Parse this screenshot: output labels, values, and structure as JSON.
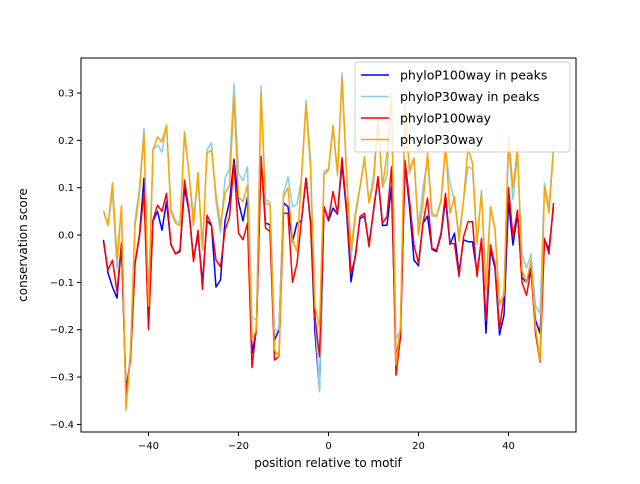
{
  "chart_data": {
    "type": "line",
    "title": "",
    "xlabel": "position relative to motif",
    "ylabel": "conservation score",
    "xlim": [
      -55,
      55
    ],
    "ylim": [
      -0.416,
      0.374
    ],
    "xticks": [
      -40,
      -20,
      0,
      20,
      40
    ],
    "xtick_labels": [
      "−40",
      "−20",
      "0",
      "20",
      "40"
    ],
    "yticks": [
      -0.4,
      -0.3,
      -0.2,
      -0.1,
      0.0,
      0.1,
      0.2,
      0.3
    ],
    "ytick_labels": [
      "−0.4",
      "−0.3",
      "−0.2",
      "−0.1",
      "0.0",
      "0.1",
      "0.2",
      "0.3"
    ],
    "grid": false,
    "legend_position": "top-right",
    "x": [
      -50,
      -49,
      -48,
      -47,
      -46,
      -45,
      -44,
      -43,
      -42,
      -41,
      -40,
      -39,
      -38,
      -37,
      -36,
      -35,
      -34,
      -33,
      -32,
      -31,
      -30,
      -29,
      -28,
      -27,
      -26,
      -25,
      -24,
      -23,
      -22,
      -21,
      -20,
      -19,
      -18,
      -17,
      -16,
      -15,
      -14,
      -13,
      -12,
      -11,
      -10,
      -9,
      -8,
      -7,
      -6,
      -5,
      -4,
      -3,
      -2,
      -1,
      0,
      1,
      2,
      3,
      4,
      5,
      6,
      7,
      8,
      9,
      10,
      11,
      12,
      13,
      14,
      15,
      16,
      17,
      18,
      19,
      20,
      21,
      22,
      23,
      24,
      25,
      26,
      27,
      28,
      29,
      30,
      31,
      32,
      33,
      34,
      35,
      36,
      37,
      38,
      39,
      40,
      41,
      42,
      43,
      44,
      45,
      46,
      47,
      48,
      49,
      50
    ],
    "series": [
      {
        "name": "phyloP100way in peaks",
        "color": "#0000ff",
        "values": [
          -0.01,
          -0.08,
          -0.11,
          -0.133,
          -0.02,
          -0.33,
          -0.26,
          -0.06,
          0.0,
          0.12,
          -0.19,
          0.03,
          0.05,
          0.01,
          0.07,
          -0.02,
          -0.04,
          -0.035,
          0.1,
          0.05,
          -0.05,
          0.0,
          -0.1,
          0.03,
          0.02,
          -0.11,
          -0.095,
          0.03,
          0.07,
          0.16,
          0.07,
          0.03,
          0.08,
          -0.25,
          -0.2,
          0.166,
          0.025,
          0.022,
          -0.222,
          -0.2,
          0.068,
          0.06,
          -0.014,
          0.025,
          0.03,
          0.12,
          0.03,
          -0.207,
          -0.327,
          0.06,
          0.03,
          0.057,
          0.044,
          0.15,
          0.05,
          -0.099,
          -0.04,
          0.035,
          0.04,
          -0.02,
          0.05,
          0.12,
          0.02,
          0.021,
          0.102,
          -0.26,
          -0.2,
          0.15,
          0.06,
          -0.053,
          -0.065,
          0.025,
          0.04,
          -0.03,
          -0.035,
          0.0,
          0.075,
          -0.02,
          0.004,
          -0.08,
          -0.01,
          -0.014,
          -0.014,
          -0.08,
          -0.01,
          -0.207,
          -0.03,
          -0.07,
          -0.211,
          -0.169,
          0.07,
          -0.021,
          0.045,
          -0.09,
          -0.1,
          -0.07,
          -0.18,
          -0.207,
          -0.01,
          -0.03,
          0.06
        ]
      },
      {
        "name": "phyloP30way in peaks",
        "color": "#87ceeb",
        "values": [
          0.05,
          0.02,
          0.09,
          -0.07,
          0.06,
          -0.36,
          -0.24,
          0.03,
          0.1,
          0.225,
          -0.15,
          0.18,
          0.19,
          0.175,
          0.232,
          0.055,
          0.03,
          0.025,
          0.21,
          0.13,
          0.04,
          0.12,
          -0.03,
          0.18,
          0.195,
          0.07,
          0.005,
          0.12,
          0.14,
          0.32,
          0.13,
          0.115,
          0.144,
          -0.173,
          -0.18,
          0.315,
          0.075,
          0.07,
          -0.2,
          -0.2,
          0.088,
          0.123,
          0.06,
          0.065,
          0.12,
          0.285,
          0.16,
          -0.17,
          -0.331,
          0.134,
          0.14,
          0.225,
          0.125,
          0.342,
          0.13,
          -0.05,
          0.04,
          0.1,
          0.16,
          0.07,
          0.125,
          0.25,
          0.1,
          0.125,
          0.3,
          -0.22,
          -0.2,
          0.28,
          0.13,
          0.16,
          0.02,
          0.1,
          0.16,
          0.04,
          0.04,
          0.07,
          0.175,
          0.11,
          0.07,
          0.0,
          0.07,
          0.144,
          0.14,
          -0.02,
          0.095,
          -0.11,
          0.06,
          0.015,
          -0.15,
          -0.12,
          0.19,
          0.074,
          0.17,
          -0.04,
          -0.07,
          -0.04,
          -0.15,
          -0.165,
          0.11,
          0.06,
          0.187
        ]
      },
      {
        "name": "phyloP100way",
        "color": "#ff0000",
        "values": [
          -0.014,
          -0.074,
          -0.053,
          -0.12,
          -0.016,
          -0.335,
          -0.264,
          -0.06,
          -0.003,
          0.09,
          -0.2,
          0.032,
          0.063,
          0.05,
          0.088,
          -0.02,
          -0.04,
          -0.032,
          0.116,
          0.053,
          -0.056,
          0.01,
          -0.115,
          0.042,
          0.021,
          -0.053,
          -0.067,
          0.01,
          0.039,
          0.152,
          0.004,
          -0.01,
          0.025,
          -0.28,
          -0.194,
          0.166,
          0.015,
          0.007,
          -0.264,
          -0.257,
          0.046,
          0.046,
          -0.1,
          -0.06,
          0.032,
          0.12,
          0.025,
          -0.173,
          -0.257,
          0.06,
          0.032,
          0.092,
          0.046,
          0.163,
          0.06,
          -0.08,
          -0.046,
          0.039,
          0.046,
          -0.025,
          0.053,
          0.123,
          0.025,
          0.039,
          0.144,
          -0.296,
          -0.215,
          0.158,
          0.074,
          -0.021,
          -0.06,
          0.025,
          0.078,
          -0.028,
          -0.032,
          0.004,
          0.088,
          -0.018,
          -0.018,
          -0.088,
          -0.004,
          0.028,
          0.028,
          -0.088,
          -0.007,
          -0.18,
          -0.021,
          -0.063,
          -0.2,
          -0.127,
          0.1,
          -0.004,
          0.053,
          -0.1,
          -0.127,
          -0.074,
          -0.207,
          -0.268,
          -0.007,
          -0.04,
          0.068
        ]
      },
      {
        "name": "phyloP30way",
        "color": "#ffa500",
        "values": [
          0.051,
          0.02,
          0.11,
          -0.05,
          0.062,
          -0.37,
          -0.25,
          0.02,
          0.09,
          0.215,
          -0.15,
          0.18,
          0.207,
          0.197,
          0.232,
          0.05,
          0.025,
          0.02,
          0.218,
          0.13,
          0.02,
          0.132,
          -0.03,
          0.173,
          0.18,
          0.085,
          0.02,
          0.088,
          0.106,
          0.292,
          0.081,
          0.07,
          0.106,
          -0.22,
          -0.2,
          0.3,
          0.068,
          0.063,
          -0.243,
          -0.257,
          0.081,
          0.1,
          -0.01,
          -0.035,
          0.123,
          0.275,
          0.144,
          -0.152,
          -0.194,
          0.127,
          0.137,
          0.232,
          0.131,
          0.332,
          0.134,
          -0.032,
          0.049,
          0.102,
          0.166,
          0.068,
          0.11,
          0.243,
          0.102,
          0.173,
          0.3,
          -0.275,
          -0.19,
          0.279,
          0.137,
          0.163,
          0.0,
          0.068,
          0.173,
          0.046,
          0.039,
          0.074,
          0.19,
          0.046,
          0.081,
          -0.014,
          0.074,
          0.183,
          0.152,
          -0.014,
          0.088,
          -0.116,
          0.06,
          0.01,
          -0.144,
          -0.127,
          0.208,
          0.1,
          0.183,
          -0.074,
          -0.1,
          -0.053,
          -0.194,
          -0.265,
          0.102,
          0.046,
          0.18
        ]
      }
    ]
  }
}
